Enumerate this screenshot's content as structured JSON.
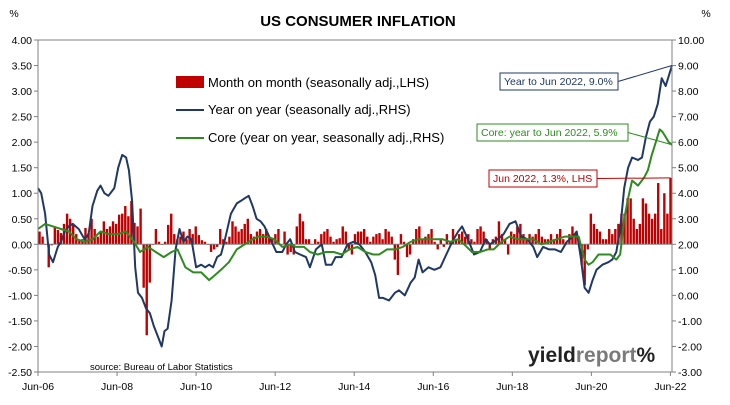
{
  "chart_data": {
    "type": "bar+line",
    "title": "US CONSUMER INFLATION",
    "left_axis": {
      "unit": "%",
      "min": -2.5,
      "max": 4.0,
      "ticks": [
        "4.00",
        "3.50",
        "3.00",
        "2.50",
        "2.00",
        "1.50",
        "1.00",
        "0.50",
        "0.00",
        "-0.50",
        "-1.00",
        "-1.50",
        "-2.00",
        "-2.50"
      ]
    },
    "right_axis": {
      "unit": "%",
      "min": -3.0,
      "max": 10.0,
      "ticks": [
        "10.00",
        "9.00",
        "8.00",
        "7.00",
        "6.00",
        "5.00",
        "4.00",
        "3.00",
        "2.00",
        "1.00",
        "0.00",
        "-1.00",
        "-2.00",
        "-3.00"
      ]
    },
    "x_ticks": [
      "Jun-06",
      "Jun-08",
      "Jun-10",
      "Jun-12",
      "Jun-14",
      "Jun-16",
      "Jun-18",
      "Jun-20",
      "Jun-22"
    ],
    "x_range": [
      "2006-06",
      "2022-06"
    ],
    "grid": false,
    "legend_position": "top-left",
    "series": [
      {
        "name": "Month on month (seasonally adj.,LHS)",
        "type": "bar",
        "axis": "left",
        "color": "#c00000",
        "values": [
          0.25,
          0.15,
          0.0,
          -0.45,
          -0.02,
          0.35,
          0.28,
          0.22,
          0.4,
          0.6,
          0.5,
          0.38,
          0.2,
          0.08,
          0.1,
          0.32,
          0.22,
          0.5,
          0.3,
          0.15,
          0.25,
          0.45,
          0.3,
          0.35,
          0.45,
          0.4,
          0.58,
          0.6,
          0.75,
          0.55,
          0.85,
          0.42,
          0.35,
          0.7,
          -0.85,
          -1.78,
          -0.75,
          0.0,
          0.3,
          0.05,
          0.0,
          0.05,
          0.38,
          0.6,
          0.2,
          0.1,
          0.15,
          0.25,
          0.1,
          0.3,
          0.2,
          0.35,
          0.18,
          0.08,
          0.05,
          0.0,
          -0.15,
          -0.1,
          -0.05,
          0.3,
          0.1,
          0.05,
          0.15,
          0.45,
          0.35,
          0.25,
          0.3,
          0.4,
          0.5,
          0.2,
          0.15,
          0.25,
          0.3,
          0.2,
          0.3,
          0.15,
          0.1,
          0.2,
          0.3,
          0.0,
          0.25,
          -0.2,
          -0.15,
          -0.2,
          0.35,
          0.6,
          0.45,
          0.1,
          0.1,
          0.0,
          0.1,
          0.05,
          0.2,
          0.25,
          0.3,
          0.15,
          0.05,
          0.1,
          0.12,
          0.35,
          0.25,
          -0.1,
          -0.2,
          0.2,
          0.25,
          0.25,
          0.3,
          0.15,
          0.05,
          0.15,
          0.2,
          0.22,
          0.1,
          0.3,
          0.25,
          0.15,
          -0.3,
          -0.6,
          0.2,
          0.05,
          -0.25,
          -0.2,
          0.1,
          0.3,
          0.35,
          0.1,
          0.15,
          0.2,
          0.3,
          0.05,
          -0.1,
          0.1,
          -0.05,
          0.2,
          0.05,
          0.3,
          0.1,
          0.2,
          0.25,
          0.15,
          0.2,
          0.1,
          0.05,
          0.3,
          0.35,
          0.25,
          0.1,
          -0.1,
          0.1,
          0.15,
          0.45,
          0.2,
          0.1,
          -0.2,
          0.25,
          0.2,
          0.35,
          0.4,
          0.2,
          0.1,
          0.2,
          0.15,
          0.2,
          0.3,
          0.15,
          0.1,
          0.1,
          0.2,
          0.1,
          0.2,
          0.3,
          0.1,
          0.05,
          0.2,
          0.35,
          0.2,
          0.1,
          -0.4,
          -0.8,
          -0.1,
          0.6,
          0.4,
          0.3,
          0.25,
          0.1,
          0.1,
          0.3,
          0.2,
          0.3,
          0.4,
          0.6,
          0.6,
          0.9,
          0.9,
          0.5,
          0.3,
          0.4,
          0.9,
          0.8,
          0.6,
          0.5,
          0.6,
          1.2,
          0.3,
          1.0,
          0.6,
          1.3
        ]
      },
      {
        "name": "Year on year (seasonally adj.,RHS)",
        "type": "line",
        "axis": "right",
        "color": "#1f3864",
        "points": [
          [
            2006.42,
            4.2
          ],
          [
            2006.5,
            4.0
          ],
          [
            2006.6,
            3.2
          ],
          [
            2006.7,
            1.6
          ],
          [
            2006.8,
            1.3
          ],
          [
            2006.92,
            1.9
          ],
          [
            2007.0,
            2.1
          ],
          [
            2007.1,
            2.5
          ],
          [
            2007.2,
            2.7
          ],
          [
            2007.3,
            2.8
          ],
          [
            2007.45,
            2.6
          ],
          [
            2007.6,
            2.2
          ],
          [
            2007.7,
            2.4
          ],
          [
            2007.8,
            3.5
          ],
          [
            2007.92,
            4.1
          ],
          [
            2008.0,
            4.3
          ],
          [
            2008.1,
            4.0
          ],
          [
            2008.2,
            3.9
          ],
          [
            2008.35,
            4.2
          ],
          [
            2008.45,
            5.0
          ],
          [
            2008.55,
            5.5
          ],
          [
            2008.65,
            5.4
          ],
          [
            2008.72,
            4.9
          ],
          [
            2008.8,
            3.7
          ],
          [
            2008.88,
            1.1
          ],
          [
            2008.95,
            0.1
          ],
          [
            2009.05,
            -0.1
          ],
          [
            2009.15,
            -0.5
          ],
          [
            2009.25,
            -0.7
          ],
          [
            2009.35,
            -1.2
          ],
          [
            2009.45,
            -1.6
          ],
          [
            2009.55,
            -2.0
          ],
          [
            2009.62,
            -1.4
          ],
          [
            2009.7,
            -1.3
          ],
          [
            2009.8,
            -0.2
          ],
          [
            2009.9,
            1.8
          ],
          [
            2010.0,
            2.6
          ],
          [
            2010.1,
            2.1
          ],
          [
            2010.2,
            2.3
          ],
          [
            2010.3,
            2.2
          ],
          [
            2010.42,
            1.1
          ],
          [
            2010.55,
            1.2
          ],
          [
            2010.65,
            1.1
          ],
          [
            2010.75,
            1.2
          ],
          [
            2010.85,
            1.1
          ],
          [
            2010.95,
            1.5
          ],
          [
            2011.05,
            1.6
          ],
          [
            2011.15,
            2.2
          ],
          [
            2011.3,
            3.2
          ],
          [
            2011.45,
            3.6
          ],
          [
            2011.55,
            3.7
          ],
          [
            2011.65,
            3.8
          ],
          [
            2011.75,
            3.9
          ],
          [
            2011.85,
            3.5
          ],
          [
            2011.95,
            3.0
          ],
          [
            2012.05,
            2.9
          ],
          [
            2012.15,
            2.7
          ],
          [
            2012.3,
            2.2
          ],
          [
            2012.45,
            1.7
          ],
          [
            2012.6,
            1.7
          ],
          [
            2012.7,
            2.0
          ],
          [
            2012.8,
            2.2
          ],
          [
            2012.92,
            1.7
          ],
          [
            2013.05,
            1.6
          ],
          [
            2013.2,
            1.5
          ],
          [
            2013.3,
            1.1
          ],
          [
            2013.45,
            1.8
          ],
          [
            2013.6,
            2.0
          ],
          [
            2013.7,
            1.2
          ],
          [
            2013.85,
            1.2
          ],
          [
            2013.95,
            1.5
          ],
          [
            2014.1,
            1.5
          ],
          [
            2014.25,
            2.0
          ],
          [
            2014.4,
            2.1
          ],
          [
            2014.55,
            2.0
          ],
          [
            2014.7,
            1.7
          ],
          [
            2014.85,
            1.3
          ],
          [
            2014.95,
            0.8
          ],
          [
            2015.05,
            -0.1
          ],
          [
            2015.15,
            -0.1
          ],
          [
            2015.3,
            -0.2
          ],
          [
            2015.45,
            0.1
          ],
          [
            2015.55,
            0.2
          ],
          [
            2015.7,
            0.0
          ],
          [
            2015.85,
            0.5
          ],
          [
            2015.95,
            0.7
          ],
          [
            2016.05,
            1.4
          ],
          [
            2016.15,
            0.9
          ],
          [
            2016.3,
            1.1
          ],
          [
            2016.45,
            1.0
          ],
          [
            2016.6,
            1.1
          ],
          [
            2016.75,
            1.6
          ],
          [
            2016.9,
            2.1
          ],
          [
            2017.05,
            2.5
          ],
          [
            2017.15,
            2.7
          ],
          [
            2017.3,
            2.2
          ],
          [
            2017.45,
            1.6
          ],
          [
            2017.6,
            1.7
          ],
          [
            2017.75,
            2.2
          ],
          [
            2017.85,
            2.0
          ],
          [
            2017.95,
            2.1
          ],
          [
            2018.05,
            2.2
          ],
          [
            2018.2,
            2.4
          ],
          [
            2018.35,
            2.8
          ],
          [
            2018.5,
            2.9
          ],
          [
            2018.65,
            2.3
          ],
          [
            2018.8,
            2.2
          ],
          [
            2018.95,
            1.9
          ],
          [
            2019.05,
            1.5
          ],
          [
            2019.2,
            1.9
          ],
          [
            2019.35,
            1.8
          ],
          [
            2019.5,
            1.8
          ],
          [
            2019.65,
            1.7
          ],
          [
            2019.8,
            2.1
          ],
          [
            2019.95,
            2.3
          ],
          [
            2020.05,
            2.5
          ],
          [
            2020.15,
            1.5
          ],
          [
            2020.25,
            0.3
          ],
          [
            2020.35,
            0.1
          ],
          [
            2020.45,
            0.6
          ],
          [
            2020.55,
            1.0
          ],
          [
            2020.7,
            1.2
          ],
          [
            2020.85,
            1.3
          ],
          [
            2020.95,
            1.4
          ],
          [
            2021.05,
            1.7
          ],
          [
            2021.15,
            2.6
          ],
          [
            2021.25,
            4.2
          ],
          [
            2021.35,
            5.0
          ],
          [
            2021.45,
            5.4
          ],
          [
            2021.6,
            5.3
          ],
          [
            2021.7,
            5.4
          ],
          [
            2021.8,
            6.2
          ],
          [
            2021.9,
            6.8
          ],
          [
            2022.0,
            7.0
          ],
          [
            2022.1,
            7.5
          ],
          [
            2022.2,
            8.5
          ],
          [
            2022.3,
            8.2
          ],
          [
            2022.38,
            8.6
          ],
          [
            2022.46,
            9.0
          ]
        ]
      },
      {
        "name": "Core (year on year, seasonally adj.,RHS)",
        "type": "line",
        "axis": "right",
        "color": "#2e8b20",
        "points": [
          [
            2006.42,
            2.6
          ],
          [
            2006.6,
            2.8
          ],
          [
            2006.8,
            2.7
          ],
          [
            2007.0,
            2.6
          ],
          [
            2007.2,
            2.5
          ],
          [
            2007.4,
            2.2
          ],
          [
            2007.6,
            2.1
          ],
          [
            2007.8,
            2.2
          ],
          [
            2008.0,
            2.5
          ],
          [
            2008.2,
            2.4
          ],
          [
            2008.45,
            2.4
          ],
          [
            2008.65,
            2.5
          ],
          [
            2008.85,
            2.1
          ],
          [
            2009.0,
            1.7
          ],
          [
            2009.2,
            1.9
          ],
          [
            2009.4,
            1.7
          ],
          [
            2009.6,
            1.5
          ],
          [
            2009.8,
            1.7
          ],
          [
            2009.95,
            1.8
          ],
          [
            2010.15,
            1.1
          ],
          [
            2010.35,
            0.9
          ],
          [
            2010.55,
            0.9
          ],
          [
            2010.75,
            0.6
          ],
          [
            2010.9,
            0.8
          ],
          [
            2011.05,
            1.0
          ],
          [
            2011.25,
            1.3
          ],
          [
            2011.45,
            1.8
          ],
          [
            2011.65,
            2.0
          ],
          [
            2011.85,
            2.2
          ],
          [
            2012.0,
            2.3
          ],
          [
            2012.2,
            2.3
          ],
          [
            2012.4,
            2.2
          ],
          [
            2012.6,
            1.9
          ],
          [
            2012.8,
            2.0
          ],
          [
            2012.95,
            1.9
          ],
          [
            2013.15,
            1.9
          ],
          [
            2013.3,
            1.7
          ],
          [
            2013.5,
            1.6
          ],
          [
            2013.7,
            1.7
          ],
          [
            2013.9,
            1.7
          ],
          [
            2014.1,
            1.6
          ],
          [
            2014.3,
            1.8
          ],
          [
            2014.5,
            1.9
          ],
          [
            2014.7,
            1.7
          ],
          [
            2014.9,
            1.6
          ],
          [
            2015.05,
            1.6
          ],
          [
            2015.25,
            1.8
          ],
          [
            2015.45,
            1.8
          ],
          [
            2015.65,
            1.9
          ],
          [
            2015.85,
            2.1
          ],
          [
            2016.05,
            2.2
          ],
          [
            2016.25,
            2.2
          ],
          [
            2016.45,
            2.2
          ],
          [
            2016.65,
            2.2
          ],
          [
            2016.85,
            2.1
          ],
          [
            2017.05,
            2.2
          ],
          [
            2017.2,
            2.0
          ],
          [
            2017.4,
            1.7
          ],
          [
            2017.6,
            1.7
          ],
          [
            2017.8,
            1.8
          ],
          [
            2017.95,
            1.8
          ],
          [
            2018.15,
            2.1
          ],
          [
            2018.35,
            2.3
          ],
          [
            2018.55,
            2.2
          ],
          [
            2018.75,
            2.2
          ],
          [
            2018.95,
            2.2
          ],
          [
            2019.15,
            2.0
          ],
          [
            2019.35,
            2.1
          ],
          [
            2019.55,
            2.2
          ],
          [
            2019.75,
            2.3
          ],
          [
            2019.95,
            2.3
          ],
          [
            2020.1,
            2.3
          ],
          [
            2020.25,
            1.4
          ],
          [
            2020.35,
            1.2
          ],
          [
            2020.45,
            1.3
          ],
          [
            2020.6,
            1.6
          ],
          [
            2020.75,
            1.6
          ],
          [
            2020.9,
            1.6
          ],
          [
            2021.05,
            1.4
          ],
          [
            2021.15,
            1.6
          ],
          [
            2021.25,
            3.0
          ],
          [
            2021.35,
            3.8
          ],
          [
            2021.45,
            4.5
          ],
          [
            2021.6,
            4.3
          ],
          [
            2021.75,
            4.6
          ],
          [
            2021.85,
            4.9
          ],
          [
            2021.95,
            5.5
          ],
          [
            2022.05,
            6.0
          ],
          [
            2022.15,
            6.5
          ],
          [
            2022.22,
            6.4
          ],
          [
            2022.3,
            6.2
          ],
          [
            2022.38,
            6.0
          ],
          [
            2022.46,
            5.9
          ]
        ]
      }
    ],
    "annotations": [
      {
        "text": "Year to Jun 2022, 9.0%",
        "color": "#1f3864",
        "target_series": 1
      },
      {
        "text": "Core: year to Jun 2022, 5.9%",
        "color": "#2e8b20",
        "target_series": 2
      },
      {
        "text": "Jun 2022, 1.3%, LHS",
        "color": "#c00000",
        "target_series": 0
      }
    ],
    "source": "source: Bureau of Labor Statistics",
    "brand": {
      "part1": "yield",
      "part2": "report",
      "part3": "%"
    }
  }
}
